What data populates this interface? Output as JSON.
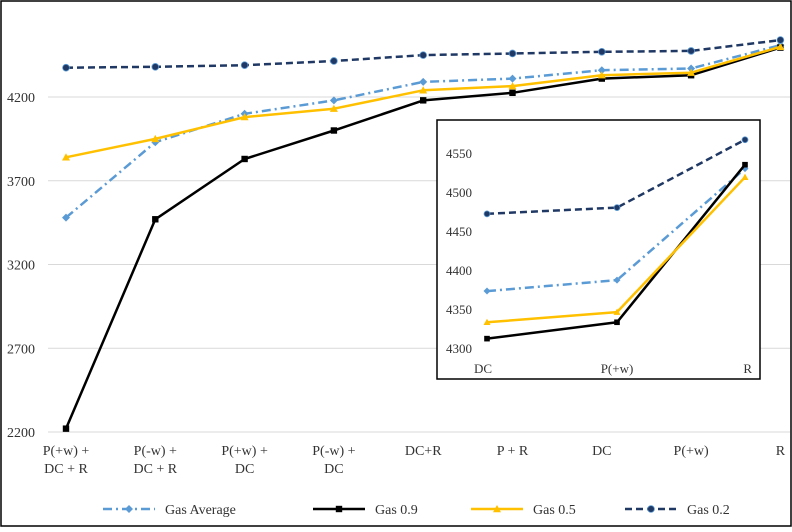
{
  "chart_data": [
    {
      "type": "line",
      "categories": [
        [
          "P(+w) +",
          "DC + R"
        ],
        [
          "P(-w) +",
          "DC + R"
        ],
        [
          "P(+w) +",
          "DC"
        ],
        [
          "P(-w) +",
          "DC"
        ],
        [
          "DC+R"
        ],
        [
          "P + R"
        ],
        [
          "DC"
        ],
        [
          "P(+w)"
        ],
        [
          "R"
        ]
      ],
      "yticks": [
        2200,
        2700,
        3200,
        3700,
        4200
      ],
      "ylim": [
        2200,
        4560
      ],
      "grid": true,
      "legend_position": "bottom",
      "series": [
        {
          "name": "Gas Average",
          "color": "#5B9BD5",
          "style": "dashdot",
          "marker": "diamond",
          "values": [
            3480,
            3930,
            4100,
            4180,
            4290,
            4310,
            4360,
            4370,
            4510
          ]
        },
        {
          "name": "Gas 0.9",
          "color": "#000000",
          "style": "solid",
          "marker": "square",
          "values": [
            2220,
            3470,
            3830,
            4000,
            4180,
            4225,
            4310,
            4330,
            4495
          ]
        },
        {
          "name": "Gas 0.5",
          "color": "#FFC000",
          "style": "solid",
          "marker": "triangle",
          "values": [
            3840,
            3950,
            4080,
            4130,
            4240,
            4265,
            4330,
            4345,
            4500
          ]
        },
        {
          "name": "Gas 0.2",
          "color": "#1F3864",
          "style": "dashed",
          "marker": "circle",
          "values": [
            4375,
            4380,
            4390,
            4415,
            4450,
            4460,
            4470,
            4475,
            4540
          ]
        }
      ]
    },
    {
      "type": "line",
      "categories": [
        "DC",
        "P(+w)",
        "R"
      ],
      "yticks": [
        4300,
        4350,
        4400,
        4450,
        4500,
        4550
      ],
      "ylim": [
        4300,
        4560
      ],
      "grid": false,
      "series": [
        {
          "name": "Gas Average",
          "color": "#5B9BD5",
          "style": "dashdot",
          "marker": "diamond",
          "values": [
            4373,
            4387,
            4530
          ]
        },
        {
          "name": "Gas 0.9",
          "color": "#000000",
          "style": "solid",
          "marker": "square",
          "values": [
            4312,
            4333,
            4535
          ]
        },
        {
          "name": "Gas 0.5",
          "color": "#FFC000",
          "style": "solid",
          "marker": "triangle",
          "values": [
            4333,
            4346,
            4519
          ]
        },
        {
          "name": "Gas 0.2",
          "color": "#1F3864",
          "style": "dashed",
          "marker": "circle",
          "values": [
            4472,
            4480,
            4567
          ]
        }
      ]
    }
  ]
}
